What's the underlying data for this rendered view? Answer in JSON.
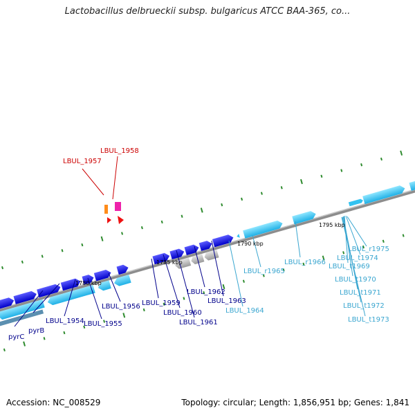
{
  "title": "Lactobacillus delbrueckii subsp. bulgaricus ATCC BAA-365, co...",
  "footer": {
    "accession": "Accession: NC_008529",
    "summary": "Topology: circular; Length: 1,856,951 bp; Genes: 1,841"
  },
  "scale_labels": [
    "1780 kbp",
    "1785 kbp",
    "1790 kbp",
    "1795 kbp"
  ],
  "gene_labels": {
    "red": [
      "LBUL_1958",
      "LBUL_1957"
    ],
    "dark": [
      "pyrC",
      "pyrB",
      "LBUL_1954",
      "LBUL_1955",
      "LBUL_1956",
      "LBUL_1959",
      "LBUL_1960",
      "LBUL_1961",
      "LBUL_1962",
      "LBUL_1963"
    ],
    "light": [
      "LBUL_1964",
      "LBUL_r1965",
      "LBUL_r1966",
      "LBUL_r1975",
      "LBUL_t1974",
      "LBUL_t1969",
      "LBUL_t1970",
      "LBUL_t1971",
      "LBUL_t1972",
      "LBUL_t1973"
    ]
  },
  "colors": {
    "cds_dark": "#1a1ae6",
    "cds_light": "#33c2f0",
    "pseudo_gray": "#b0b0b0",
    "rna_red": "#ee1111",
    "rna_orange": "#ff8c1a",
    "rna_magenta": "#ee22aa",
    "backbone": "#8a8a8a",
    "ticks": "#2e8b2e"
  }
}
